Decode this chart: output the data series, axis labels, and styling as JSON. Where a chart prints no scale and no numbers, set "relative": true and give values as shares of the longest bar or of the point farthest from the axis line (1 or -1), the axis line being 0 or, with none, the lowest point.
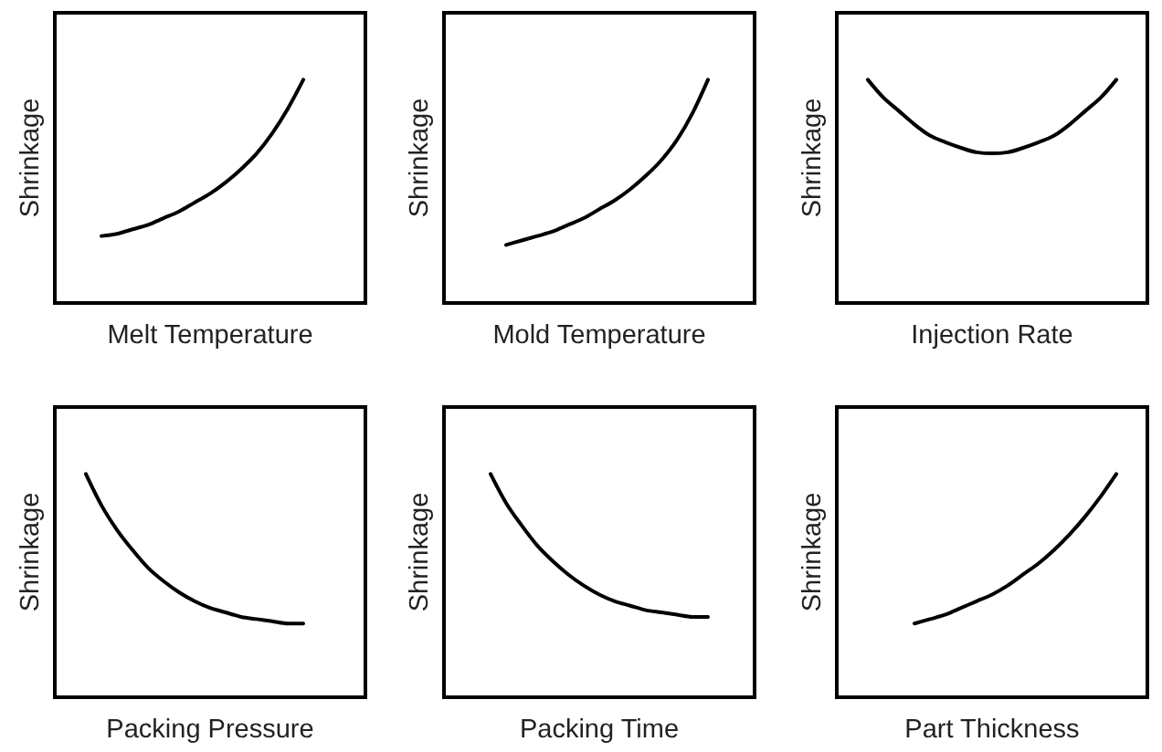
{
  "chart_data": [
    {
      "type": "line",
      "relative": true,
      "xlabel": "Melt Temperature",
      "ylabel": "Shrinkage",
      "categories": [
        null,
        null,
        null,
        null,
        null,
        null,
        null,
        null,
        null,
        null,
        null,
        null,
        null,
        null,
        null,
        null,
        null,
        null,
        null,
        null,
        null
      ],
      "series": [
        {
          "color": "#000000",
          "values": [
            null,
            null,
            null,
            0.3,
            0.31,
            0.33,
            0.35,
            0.38,
            0.41,
            0.45,
            0.49,
            0.54,
            0.6,
            0.67,
            0.76,
            0.87,
            1.0,
            null,
            null,
            null,
            null
          ]
        }
      ]
    },
    {
      "type": "line",
      "relative": true,
      "xlabel": "Mold Temperature",
      "ylabel": "Shrinkage",
      "categories": [
        null,
        null,
        null,
        null,
        null,
        null,
        null,
        null,
        null,
        null,
        null,
        null,
        null,
        null,
        null,
        null,
        null,
        null,
        null,
        null,
        null
      ],
      "series": [
        {
          "color": "#000000",
          "values": [
            null,
            null,
            null,
            null,
            0.26,
            0.28,
            0.3,
            0.32,
            0.35,
            0.38,
            0.42,
            0.46,
            0.51,
            0.57,
            0.64,
            0.73,
            0.85,
            1.0,
            null,
            null,
            null
          ]
        }
      ]
    },
    {
      "type": "line",
      "relative": true,
      "xlabel": "Injection Rate",
      "ylabel": "Shrinkage",
      "categories": [
        null,
        null,
        null,
        null,
        null,
        null,
        null,
        null,
        null,
        null,
        null,
        null,
        null,
        null,
        null,
        null,
        null,
        null,
        null,
        null,
        null
      ],
      "series": [
        {
          "color": "#000000",
          "values": [
            null,
            null,
            1.0,
            0.92,
            0.86,
            0.8,
            0.75,
            0.72,
            0.695,
            0.675,
            0.67,
            0.675,
            0.695,
            0.72,
            0.75,
            0.8,
            0.86,
            0.92,
            1.0,
            null,
            null
          ]
        }
      ]
    },
    {
      "type": "line",
      "relative": true,
      "xlabel": "Packing Pressure",
      "ylabel": "Shrinkage",
      "categories": [
        null,
        null,
        null,
        null,
        null,
        null,
        null,
        null,
        null,
        null,
        null,
        null,
        null,
        null,
        null,
        null,
        null,
        null,
        null,
        null,
        null
      ],
      "series": [
        {
          "color": "#000000",
          "values": [
            null,
            null,
            1.0,
            0.86,
            0.75,
            0.66,
            0.58,
            0.52,
            0.47,
            0.43,
            0.4,
            0.38,
            0.36,
            0.35,
            0.34,
            0.33,
            0.33,
            null,
            null,
            null,
            null
          ]
        }
      ]
    },
    {
      "type": "line",
      "relative": true,
      "xlabel": "Packing Time",
      "ylabel": "Shrinkage",
      "categories": [
        null,
        null,
        null,
        null,
        null,
        null,
        null,
        null,
        null,
        null,
        null,
        null,
        null,
        null,
        null,
        null,
        null,
        null,
        null,
        null,
        null
      ],
      "series": [
        {
          "color": "#000000",
          "values": [
            null,
            null,
            null,
            1.0,
            0.87,
            0.77,
            0.68,
            0.61,
            0.55,
            0.5,
            0.46,
            0.43,
            0.41,
            0.39,
            0.38,
            0.37,
            0.36,
            0.36,
            null,
            null,
            null
          ]
        }
      ]
    },
    {
      "type": "line",
      "relative": true,
      "xlabel": "Part Thickness",
      "ylabel": "Shrinkage",
      "categories": [
        null,
        null,
        null,
        null,
        null,
        null,
        null,
        null,
        null,
        null,
        null,
        null,
        null,
        null,
        null,
        null,
        null,
        null,
        null,
        null,
        null
      ],
      "series": [
        {
          "color": "#000000",
          "values": [
            null,
            null,
            null,
            null,
            null,
            0.33,
            0.35,
            0.37,
            0.4,
            0.43,
            0.46,
            0.5,
            0.55,
            0.6,
            0.66,
            0.73,
            0.81,
            0.9,
            1.0,
            null,
            null
          ]
        }
      ]
    }
  ]
}
